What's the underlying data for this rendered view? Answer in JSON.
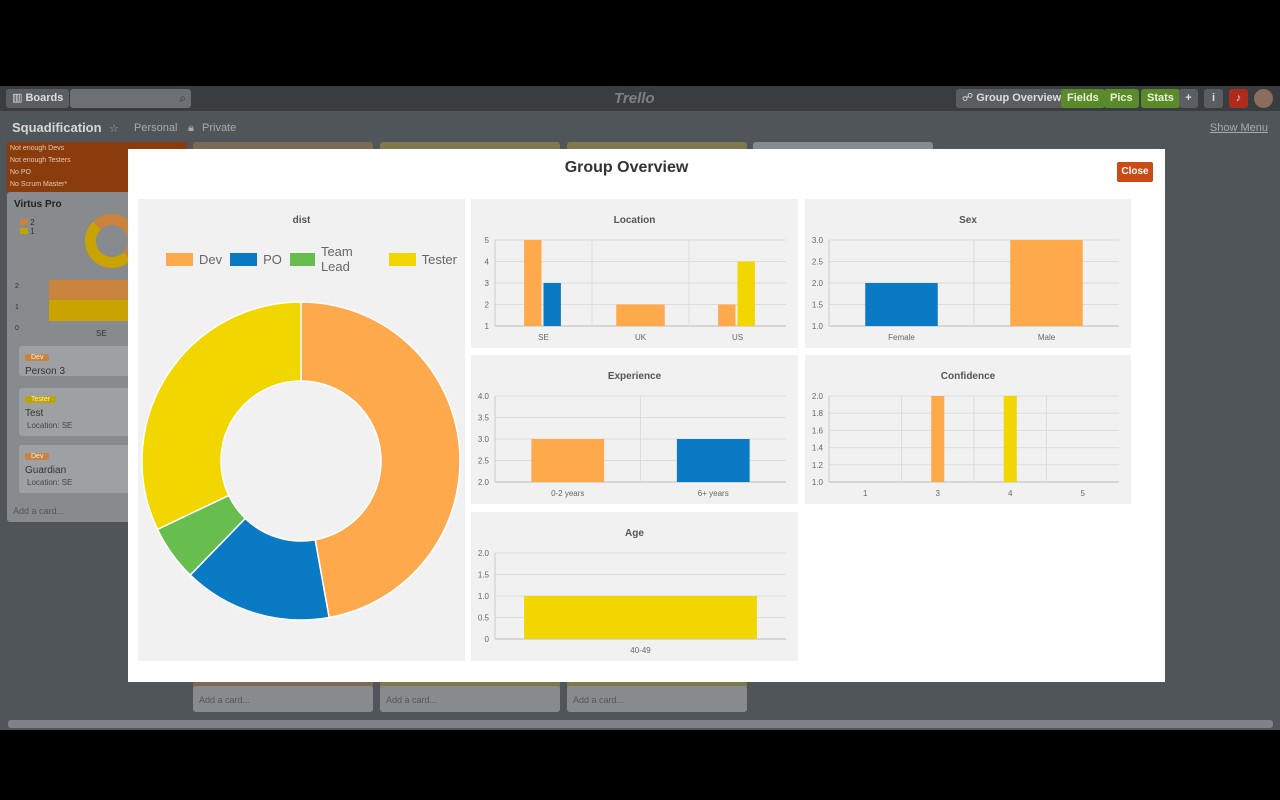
{
  "topbar": {
    "boards_label": "Boards",
    "logo": "Trello",
    "group_overview_label": "Group Overview",
    "fields_label": "Fields",
    "pics_label": "Pics",
    "stats_label": "Stats",
    "plus": "+",
    "info": "i"
  },
  "board": {
    "title": "Squadification",
    "personal": "Personal",
    "private": "Private",
    "show_menu": "Show Menu"
  },
  "background": {
    "warnings": [
      "Not enough Devs",
      "Not enough Testers",
      "No PO",
      "No Scrum Master*"
    ],
    "list_title": "Virtus Pro",
    "legend": [
      "2",
      "1"
    ],
    "axis": [
      "2",
      "1",
      "0"
    ],
    "axis_label": "SE",
    "cards": [
      {
        "label": "Dev",
        "text": "Person 3",
        "sub": ""
      },
      {
        "label": "Tester",
        "text": "Test",
        "sub": "Location: SE"
      },
      {
        "label": "Dev",
        "text": "Guardian",
        "sub": "Location: SE"
      }
    ],
    "add_card": "Add a card..."
  },
  "modal": {
    "title": "Group Overview",
    "close": "Close"
  },
  "colors": {
    "Dev": "#ffa94d",
    "PO": "#0a7ac4",
    "Team Lead": "#67be4f",
    "Tester": "#f2d600"
  },
  "chart_data": [
    {
      "id": "dist",
      "type": "pie",
      "title": "dist",
      "legend": [
        "Dev",
        "PO",
        "Team Lead",
        "Tester"
      ],
      "values": [
        5,
        1.6,
        0.6,
        3.4
      ]
    },
    {
      "id": "location",
      "type": "bar",
      "title": "Location",
      "categories": [
        "SE",
        "UK",
        "US"
      ],
      "series": [
        {
          "name": "Dev",
          "values": [
            5,
            2,
            2
          ]
        },
        {
          "name": "PO",
          "values": [
            3,
            null,
            null
          ]
        },
        {
          "name": "Tester",
          "values": [
            null,
            null,
            4
          ]
        }
      ],
      "ylim": [
        1,
        5
      ],
      "yticks": [
        "1",
        "2",
        "3",
        "4",
        "5"
      ]
    },
    {
      "id": "sex",
      "type": "bar",
      "title": "Sex",
      "categories": [
        "Female",
        "Male"
      ],
      "series": [
        {
          "name": "PO",
          "values": [
            2,
            null
          ]
        },
        {
          "name": "Dev",
          "values": [
            null,
            3
          ]
        }
      ],
      "ylim": [
        1,
        3
      ],
      "yticks": [
        "1.0",
        "1.5",
        "2.0",
        "2.5",
        "3.0"
      ]
    },
    {
      "id": "experience",
      "type": "bar",
      "title": "Experience",
      "categories": [
        "0-2 years",
        "6+ years"
      ],
      "series": [
        {
          "name": "Dev",
          "values": [
            3,
            null
          ]
        },
        {
          "name": "PO",
          "values": [
            null,
            3
          ]
        }
      ],
      "ylim": [
        2,
        4
      ],
      "yticks": [
        "2.0",
        "2.5",
        "3.0",
        "3.5",
        "4.0"
      ]
    },
    {
      "id": "confidence",
      "type": "bar",
      "title": "Confidence",
      "categories": [
        "1",
        "3",
        "4",
        "5"
      ],
      "series": [
        {
          "name": "Dev",
          "values": [
            null,
            2,
            null,
            null
          ]
        },
        {
          "name": "Tester",
          "values": [
            null,
            null,
            2,
            null
          ]
        }
      ],
      "ylim": [
        1,
        2
      ],
      "yticks": [
        "1.0",
        "1.2",
        "1.4",
        "1.6",
        "1.8",
        "2.0"
      ]
    },
    {
      "id": "age",
      "type": "bar",
      "title": "Age",
      "categories": [
        "40-49"
      ],
      "series": [
        {
          "name": "Tester",
          "values": [
            1
          ]
        }
      ],
      "ylim": [
        0,
        2
      ],
      "yticks": [
        "0",
        "0.5",
        "1.0",
        "1.5",
        "2.0"
      ]
    }
  ]
}
